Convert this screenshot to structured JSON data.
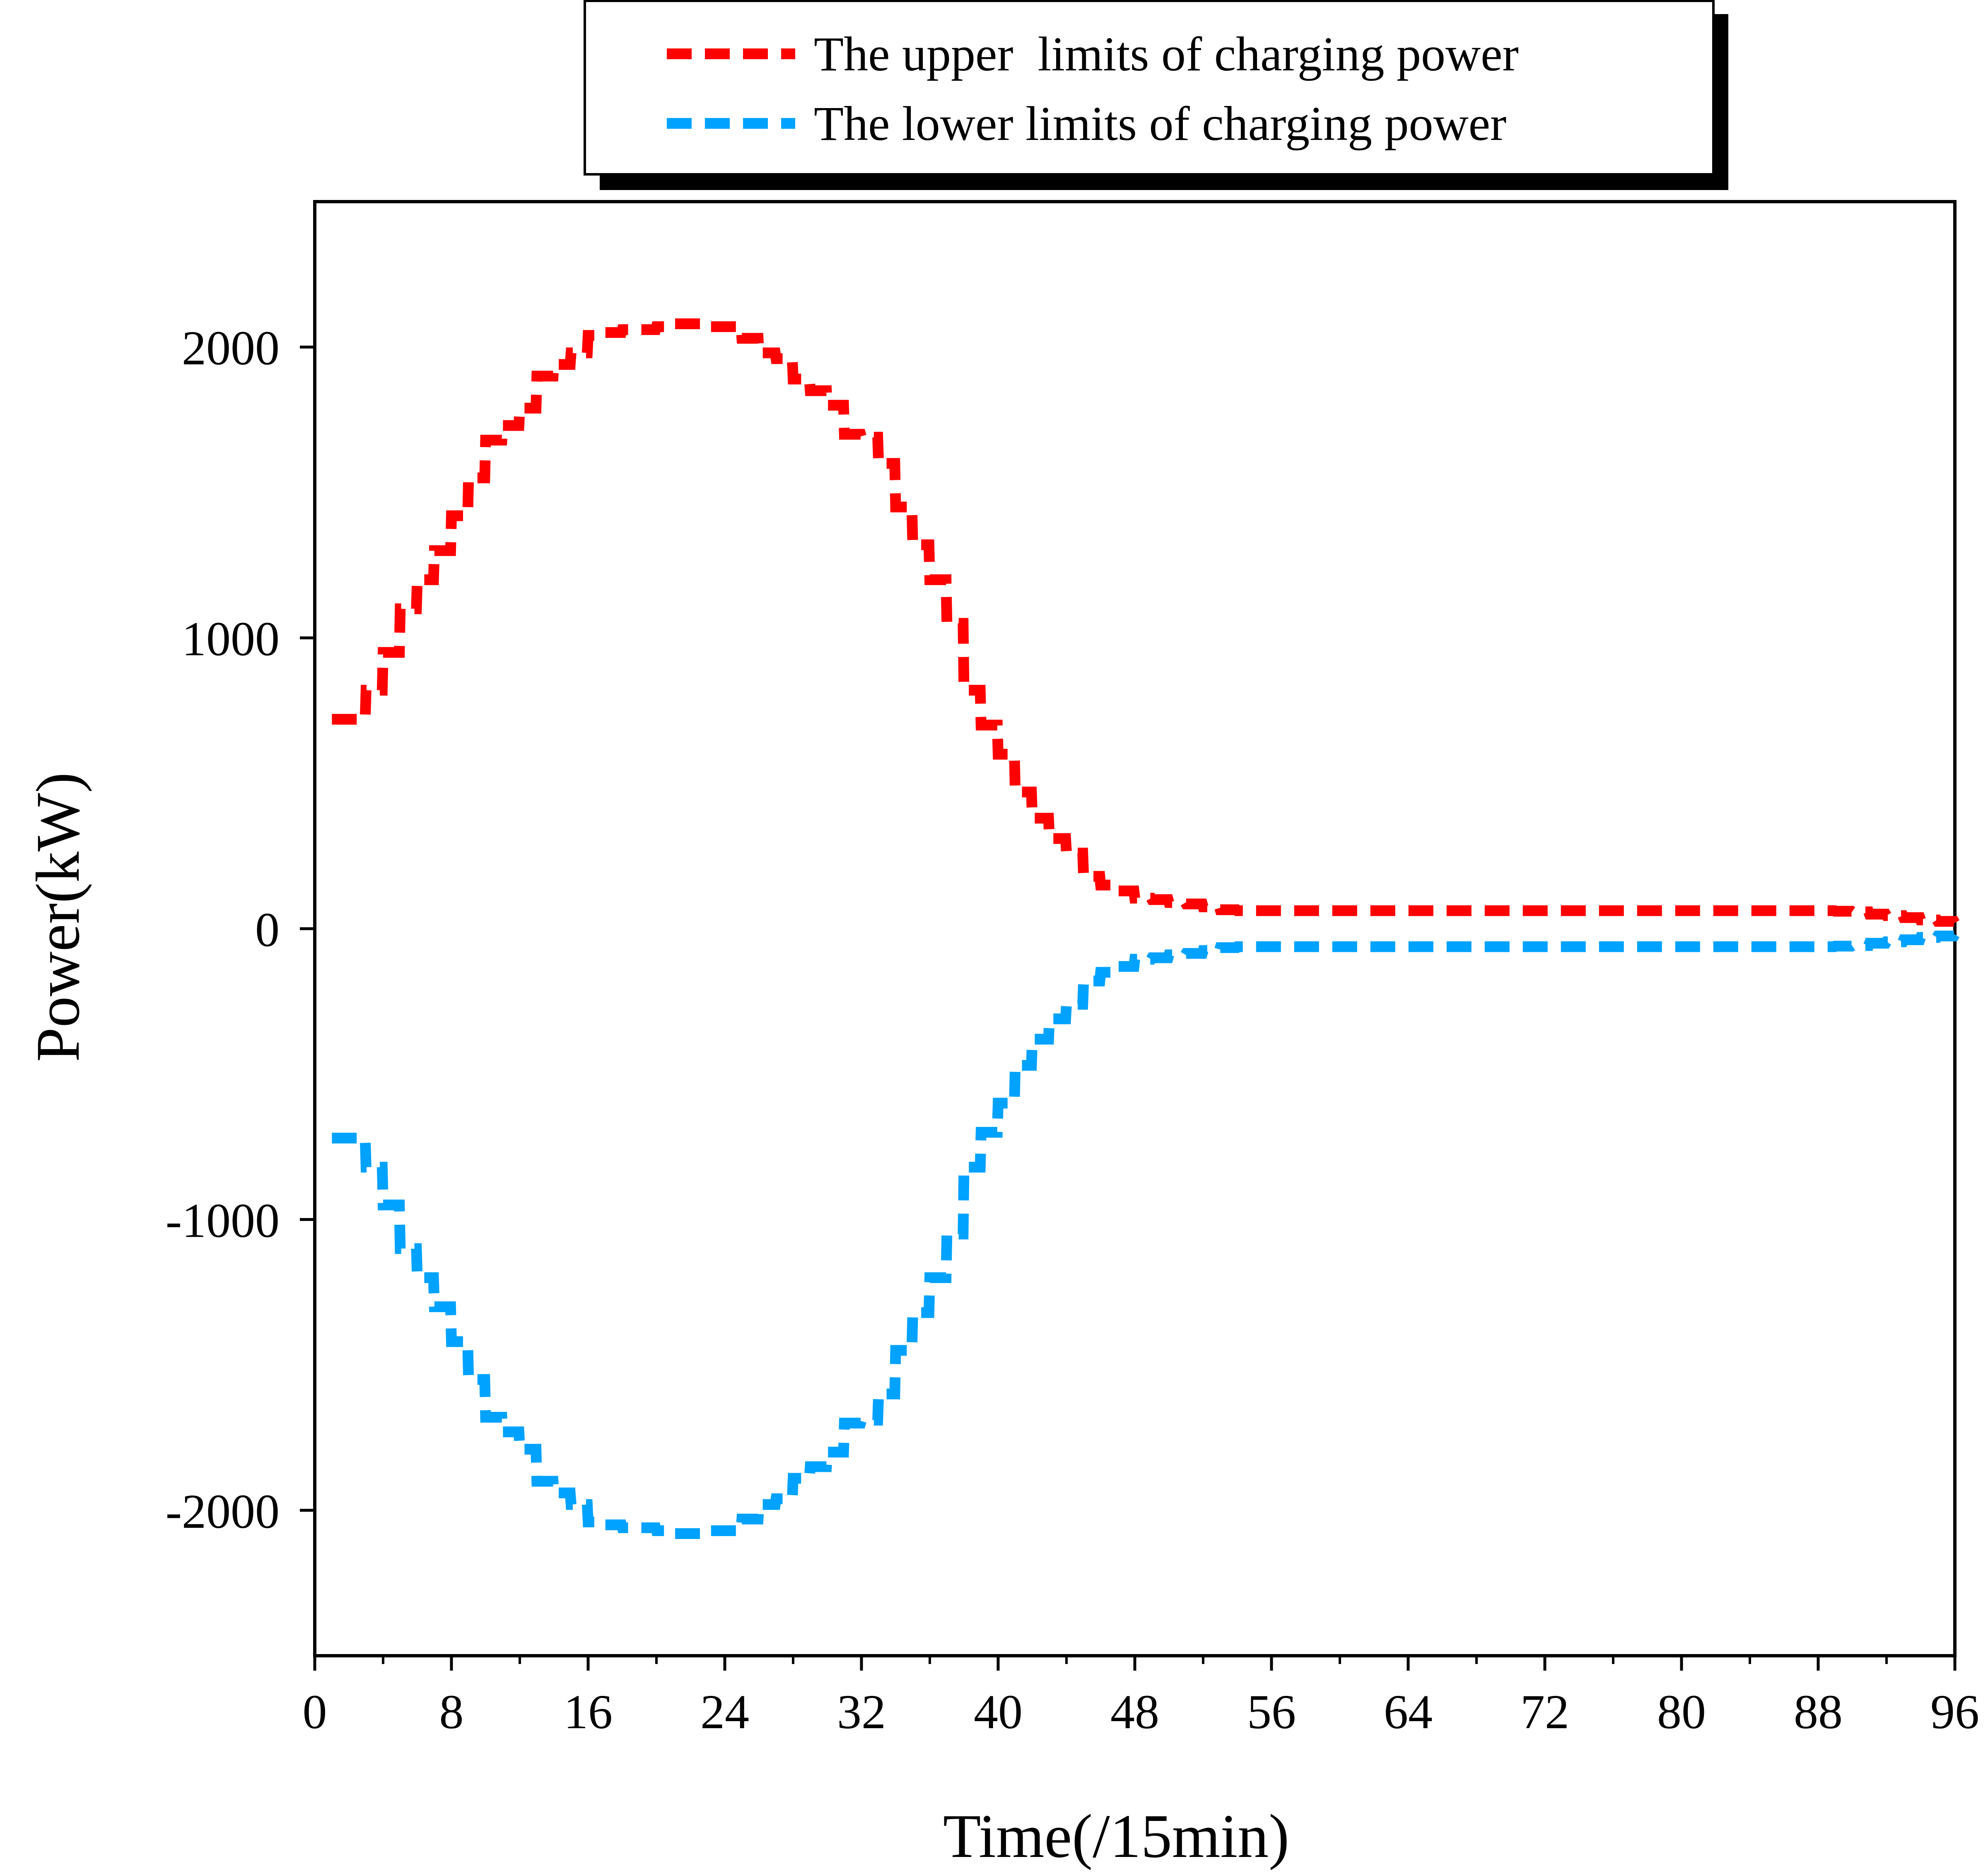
{
  "chart_data": {
    "type": "line",
    "title": "",
    "xlabel": "Time(/15min)",
    "ylabel": "Power(kW)",
    "xlim": [
      0,
      96
    ],
    "ylim": [
      -2500,
      2500
    ],
    "xticks": [
      0,
      8,
      16,
      24,
      32,
      40,
      48,
      56,
      64,
      72,
      80,
      88,
      96
    ],
    "yticks": [
      -2000,
      -1000,
      0,
      1000,
      2000
    ],
    "grid": false,
    "legend_position": "top-center",
    "series": [
      {
        "name": "The upper  limits of charging power",
        "color": "#ff0000",
        "dash": "dashed",
        "x": [
          1,
          2,
          3,
          4,
          5,
          6,
          7,
          8,
          9,
          10,
          11,
          12,
          13,
          14,
          15,
          16,
          17,
          18,
          19,
          20,
          21,
          22,
          23,
          24,
          25,
          26,
          27,
          28,
          29,
          30,
          31,
          32,
          33,
          34,
          35,
          36,
          37,
          38,
          39,
          40,
          41,
          42,
          43,
          44,
          45,
          46,
          47,
          48,
          49,
          50,
          51,
          52,
          53,
          54,
          55,
          56,
          57,
          58,
          59,
          60,
          61,
          62,
          63,
          64,
          65,
          66,
          67,
          68,
          69,
          70,
          71,
          72,
          73,
          74,
          75,
          76,
          77,
          78,
          79,
          80,
          81,
          82,
          83,
          84,
          85,
          86,
          87,
          88,
          89,
          90,
          91,
          92,
          93,
          94,
          95,
          96
        ],
        "values": [
          720,
          720,
          820,
          950,
          1100,
          1200,
          1300,
          1420,
          1550,
          1680,
          1730,
          1790,
          1900,
          1940,
          1980,
          2040,
          2050,
          2060,
          2060,
          2070,
          2080,
          2080,
          2070,
          2070,
          2030,
          1980,
          1960,
          1890,
          1850,
          1800,
          1700,
          1690,
          1600,
          1450,
          1320,
          1200,
          1050,
          820,
          700,
          600,
          470,
          380,
          310,
          260,
          180,
          150,
          130,
          105,
          100,
          90,
          85,
          75,
          65,
          62,
          62,
          62,
          62,
          62,
          62,
          62,
          62,
          62,
          62,
          62,
          62,
          62,
          62,
          62,
          62,
          62,
          62,
          62,
          62,
          62,
          62,
          62,
          62,
          62,
          62,
          62,
          62,
          62,
          62,
          62,
          62,
          62,
          62,
          62,
          60,
          58,
          50,
          45,
          38,
          30,
          25,
          20
        ]
      },
      {
        "name": "The lower limits of charging power",
        "color": "#00a2ff",
        "dash": "dashed",
        "x": [
          1,
          2,
          3,
          4,
          5,
          6,
          7,
          8,
          9,
          10,
          11,
          12,
          13,
          14,
          15,
          16,
          17,
          18,
          19,
          20,
          21,
          22,
          23,
          24,
          25,
          26,
          27,
          28,
          29,
          30,
          31,
          32,
          33,
          34,
          35,
          36,
          37,
          38,
          39,
          40,
          41,
          42,
          43,
          44,
          45,
          46,
          47,
          48,
          49,
          50,
          51,
          52,
          53,
          54,
          55,
          56,
          57,
          58,
          59,
          60,
          61,
          62,
          63,
          64,
          65,
          66,
          67,
          68,
          69,
          70,
          71,
          72,
          73,
          74,
          75,
          76,
          77,
          78,
          79,
          80,
          81,
          82,
          83,
          84,
          85,
          86,
          87,
          88,
          89,
          90,
          91,
          92,
          93,
          94,
          95,
          96
        ],
        "values": [
          -720,
          -720,
          -820,
          -950,
          -1100,
          -1200,
          -1300,
          -1420,
          -1550,
          -1680,
          -1730,
          -1790,
          -1900,
          -1940,
          -1980,
          -2040,
          -2050,
          -2060,
          -2060,
          -2070,
          -2080,
          -2080,
          -2070,
          -2070,
          -2030,
          -1980,
          -1960,
          -1890,
          -1850,
          -1800,
          -1700,
          -1690,
          -1600,
          -1450,
          -1320,
          -1200,
          -1050,
          -820,
          -700,
          -600,
          -470,
          -380,
          -310,
          -260,
          -180,
          -150,
          -130,
          -105,
          -100,
          -90,
          -85,
          -75,
          -65,
          -62,
          -62,
          -62,
          -62,
          -62,
          -62,
          -62,
          -62,
          -62,
          -62,
          -62,
          -62,
          -62,
          -62,
          -62,
          -62,
          -62,
          -62,
          -62,
          -62,
          -62,
          -62,
          -62,
          -62,
          -62,
          -62,
          -62,
          -62,
          -62,
          -62,
          -62,
          -62,
          -62,
          -62,
          -62,
          -60,
          -58,
          -50,
          -45,
          -38,
          -30,
          -25,
          -20
        ]
      }
    ]
  }
}
